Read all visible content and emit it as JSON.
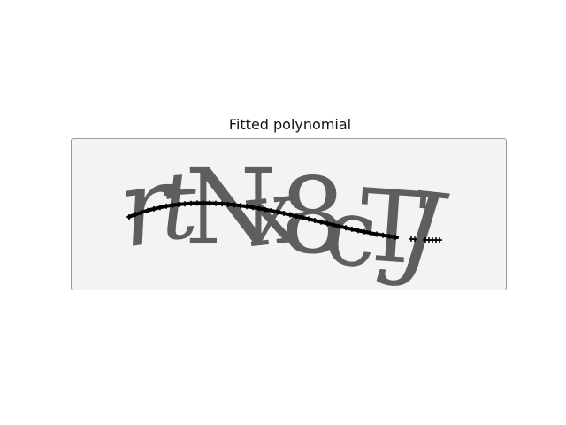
{
  "figure": {
    "title": "Fitted polynomial"
  },
  "captcha": {
    "text": "rtNx8cTJ",
    "glyph_color": "#5e5e5e",
    "background_color": "#f3f3f3"
  },
  "fit_curve": {
    "color": "#000000",
    "marker": "plus"
  }
}
